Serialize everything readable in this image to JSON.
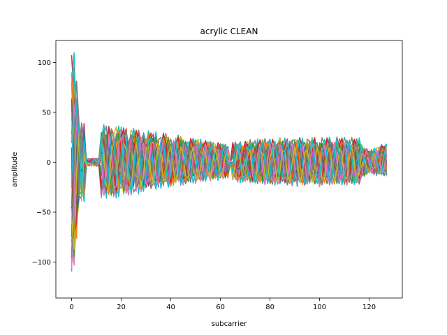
{
  "chart_data": {
    "type": "line",
    "title": "acrylic CLEAN",
    "xlabel": "subcarrier",
    "ylabel": "amplitude",
    "xlim": [
      -6.35,
      133.35
    ],
    "ylim": [
      -136,
      122
    ],
    "xticks": [
      0,
      20,
      40,
      60,
      80,
      100,
      120
    ],
    "yticks": [
      -100,
      -50,
      0,
      50,
      100
    ],
    "xtick_labels": [
      "0",
      "20",
      "40",
      "60",
      "80",
      "100",
      "120"
    ],
    "ytick_labels": [
      "−100",
      "−50",
      "0",
      "50",
      "100"
    ],
    "grid": false,
    "legend": "none",
    "subcarrier_range": [
      0,
      127
    ],
    "num_series": 40,
    "colors": [
      "#1f77b4",
      "#ff7f0e",
      "#2ca02c",
      "#d62728",
      "#9467bd",
      "#8c564b",
      "#e377c2",
      "#7f7f7f",
      "#bcbd22",
      "#17becf"
    ],
    "envelope": {
      "description": "approximate per-subcarrier amplitude band spanned by the overlapping series",
      "x": [
        0,
        1,
        2,
        3,
        5,
        10,
        11,
        12,
        15,
        20,
        25,
        30,
        40,
        50,
        60,
        63,
        64,
        65,
        70,
        80,
        90,
        100,
        110,
        116,
        117,
        120,
        125,
        127
      ],
      "upper": [
        110,
        112,
        80,
        60,
        20,
        5,
        2,
        38,
        37,
        36,
        34,
        32,
        28,
        24,
        20,
        18,
        0,
        20,
        22,
        24,
        25,
        25,
        25,
        24,
        18,
        12,
        18,
        20
      ],
      "lower": [
        -125,
        -110,
        -90,
        -40,
        -10,
        -5,
        -2,
        -38,
        -38,
        -36,
        -34,
        -30,
        -26,
        -22,
        -18,
        -18,
        0,
        -20,
        -22,
        -24,
        -25,
        -25,
        -24,
        -24,
        -18,
        -12,
        -15,
        -16
      ]
    }
  }
}
